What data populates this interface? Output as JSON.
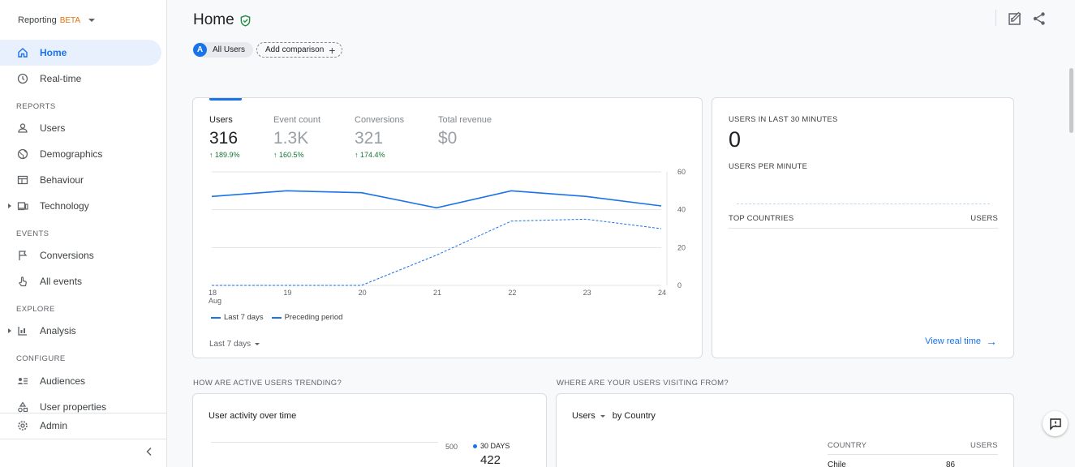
{
  "sidebar": {
    "brand": "Reporting",
    "brand_badge": "BETA",
    "items": [
      {
        "label": "Home"
      },
      {
        "label": "Real-time"
      },
      {
        "label": "Users"
      },
      {
        "label": "Demographics"
      },
      {
        "label": "Behaviour"
      },
      {
        "label": "Technology"
      },
      {
        "label": "Conversions"
      },
      {
        "label": "All events"
      },
      {
        "label": "Analysis"
      },
      {
        "label": "Audiences"
      },
      {
        "label": "User properties"
      },
      {
        "label": "Admin"
      }
    ],
    "sections": [
      "REPORTS",
      "EVENTS",
      "EXPLORE",
      "CONFIGURE"
    ]
  },
  "header": {
    "title": "Home",
    "comparison_chip": {
      "avatar": "A",
      "label": "All Users"
    },
    "add_comparison": "Add comparison",
    "add_icon": "+"
  },
  "overview": {
    "metrics": [
      {
        "label": "Users",
        "value": "316",
        "delta": "189.9%"
      },
      {
        "label": "Event count",
        "value": "1.3K",
        "delta": "160.5%"
      },
      {
        "label": "Conversions",
        "value": "321",
        "delta": "174.4%"
      },
      {
        "label": "Total revenue",
        "value": "$0",
        "delta": ""
      }
    ],
    "legend": {
      "current": "Last 7 days",
      "previous": "Preceding period"
    },
    "range_selector": "Last 7 days"
  },
  "chart_data": {
    "type": "line",
    "x": [
      "18",
      "19",
      "20",
      "21",
      "22",
      "23",
      "24"
    ],
    "x_sublabel": "Aug",
    "ylim": [
      0,
      60
    ],
    "yticks": [
      "60",
      "40",
      "20",
      "0"
    ],
    "grid": true,
    "series": [
      {
        "name": "Last 7 days",
        "style": "solid",
        "values": [
          47,
          50,
          49,
          41,
          50,
          47,
          42
        ]
      },
      {
        "name": "Preceding period",
        "style": "dashed",
        "values": [
          0,
          0,
          0,
          16,
          34,
          35,
          30
        ]
      }
    ],
    "legend_position": "bottom-left"
  },
  "realtime": {
    "title": "USERS IN LAST 30 MINUTES",
    "value": "0",
    "per_minute": "USERS PER MINUTE",
    "col_left": "TOP COUNTRIES",
    "col_right": "USERS",
    "link": "View real time",
    "link_arrow": "→"
  },
  "trend": {
    "question": "HOW ARE ACTIVE USERS TRENDING?",
    "card_title": "User activity over time",
    "tick": "500",
    "series_label": "30 DAYS",
    "series_value": "422"
  },
  "geo": {
    "question": "WHERE ARE YOUR USERS VISITING FROM?",
    "dimension_metric": "Users",
    "dimension_by": "by Country",
    "col_left": "COUNTRY",
    "col_right": "USERS",
    "rows": [
      {
        "country": "Chile",
        "users": "86"
      }
    ]
  },
  "colors": {
    "accent": "#1a73e8",
    "positive": "#137333",
    "beta": "#e8710a"
  }
}
